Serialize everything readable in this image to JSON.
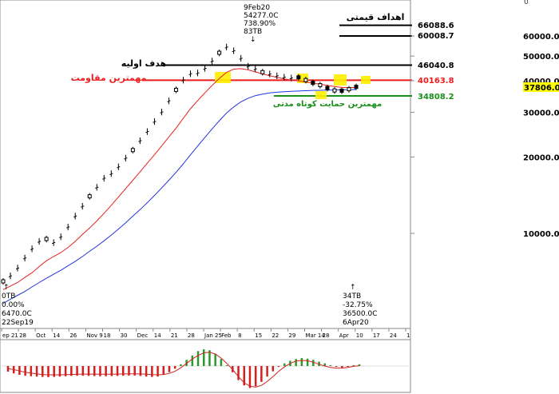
{
  "chart_data": {
    "type": "candlestick",
    "title": "",
    "xlabel": "",
    "ylabel": "",
    "y_scale": "log",
    "ylim": [
      5200,
      86000
    ],
    "x_ticks": [
      "ep 21",
      "28",
      "Oct",
      "14",
      "26",
      "Nov 9",
      "18",
      "30",
      "Dec",
      "14",
      "21",
      "28",
      "Jan 25",
      "Feb",
      "8",
      "15",
      "22",
      "29",
      "Mar 14",
      "28",
      "Apr",
      "10",
      "17",
      "24",
      "1"
    ],
    "y_ticks": [
      {
        "label": "60000.0",
        "value": 60000
      },
      {
        "label": "50000.0",
        "value": 50000
      },
      {
        "label": "40000.0",
        "value": 40000
      },
      {
        "label": "30000.0",
        "value": 30000
      },
      {
        "label": "20000.0",
        "value": 20000
      },
      {
        "label": "10000.0",
        "value": 10000
      }
    ],
    "corner_label": "0",
    "last_price": "37806.0",
    "price_series": [
      6470,
      6800,
      7300,
      8000,
      8700,
      9300,
      9500,
      9200,
      9700,
      10600,
      11700,
      12800,
      14000,
      15200,
      16500,
      17200,
      18300,
      19800,
      21300,
      23200,
      25200,
      27600,
      30100,
      33300,
      36800,
      40200,
      42600,
      42900,
      44700,
      47800,
      51500,
      54277,
      52500,
      49000,
      45600,
      44500,
      43200,
      42500,
      41800,
      41300,
      41000,
      41200,
      40200,
      39200,
      38400,
      37400,
      36600,
      36500,
      37000,
      37806
    ],
    "ma_fast": [
      6000,
      6200,
      6400,
      6700,
      7000,
      7400,
      7800,
      8100,
      8400,
      8800,
      9300,
      9900,
      10500,
      11200,
      12000,
      12900,
      13900,
      15000,
      16200,
      17500,
      18900,
      20400,
      22100,
      24000,
      26000,
      28400,
      31000,
      33400,
      35800,
      38300,
      40800,
      43100,
      44400,
      44600,
      44100,
      43300,
      42500,
      41800,
      41200,
      40600,
      40200,
      39900,
      39500,
      39100,
      38700,
      38300,
      37900,
      37600,
      37500,
      37600
    ],
    "ma_slow": [
      5300,
      5500,
      5700,
      5900,
      6150,
      6400,
      6650,
      6900,
      7150,
      7450,
      7750,
      8100,
      8500,
      8900,
      9350,
      9850,
      10400,
      11000,
      11700,
      12400,
      13200,
      14100,
      15100,
      16200,
      17400,
      18800,
      20400,
      22100,
      23900,
      25800,
      27800,
      29800,
      31500,
      33000,
      34100,
      34900,
      35400,
      35800,
      36000,
      36200,
      36300,
      36400,
      36500,
      36600,
      36650,
      36700,
      36750,
      36800,
      36850,
      36900
    ],
    "macd_histogram": [
      -0.32,
      -0.42,
      -0.5,
      -0.55,
      -0.58,
      -0.6,
      -0.62,
      -0.63,
      -0.62,
      -0.6,
      -0.58,
      -0.56,
      -0.55,
      -0.55,
      -0.56,
      -0.57,
      -0.58,
      -0.58,
      -0.57,
      -0.56,
      -0.55,
      -0.54,
      -0.54,
      -0.56,
      -0.6,
      -0.62,
      -0.6,
      -0.5,
      -0.35,
      -0.15,
      0.1,
      0.35,
      0.6,
      0.85,
      0.95,
      0.9,
      0.7,
      0.4,
      0.05,
      -0.35,
      -0.8,
      -1.1,
      -1.25,
      -1.15,
      -0.9,
      -0.6,
      -0.3,
      -0.05,
      0.15,
      0.3,
      0.4,
      0.45,
      0.42,
      0.35,
      0.25,
      0.15,
      0.05,
      -0.05,
      -0.1,
      -0.05,
      0.05,
      0.1
    ],
    "macd_signal": [
      -0.15,
      -0.2,
      -0.28,
      -0.35,
      -0.4,
      -0.45,
      -0.48,
      -0.5,
      -0.5,
      -0.5,
      -0.49,
      -0.48,
      -0.47,
      -0.46,
      -0.46,
      -0.46,
      -0.47,
      -0.47,
      -0.47,
      -0.46,
      -0.45,
      -0.44,
      -0.44,
      -0.45,
      -0.47,
      -0.49,
      -0.5,
      -0.48,
      -0.42,
      -0.3,
      -0.1,
      0.15,
      0.4,
      0.6,
      0.75,
      0.78,
      0.68,
      0.45,
      0.15,
      -0.2,
      -0.6,
      -0.95,
      -1.15,
      -1.2,
      -1.1,
      -0.88,
      -0.6,
      -0.3,
      -0.05,
      0.15,
      0.28,
      0.32,
      0.3,
      0.22,
      0.1,
      0.0,
      -0.08,
      -0.12,
      -0.12,
      -0.08,
      -0.02,
      0.02
    ],
    "levels": [
      {
        "name": "target-1",
        "value": 66088.6,
        "label": "66088.6",
        "color": "#000000"
      },
      {
        "name": "target-2",
        "value": 60008.7,
        "label": "60008.7",
        "color": "#000000"
      },
      {
        "name": "initial-target",
        "value": 46040.8,
        "label": "46040.8",
        "color": "#000000"
      },
      {
        "name": "key-resistance",
        "value": 40163.8,
        "label": "40163.8",
        "color": "#ee1c1c"
      },
      {
        "name": "key-support",
        "value": 34808.2,
        "label": "34808.2",
        "color": "#1a8f1a"
      }
    ],
    "annotations": {
      "targets_title": "اهداف قیمتی",
      "initial_target": "هدف اولیه",
      "key_resistance": "مهمترین مقاومت",
      "key_support": "مهمترین حمایت کوتاه مدتی",
      "peak": [
        "9Feb20",
        "54277.0C",
        "738.90%",
        "83TB"
      ],
      "start": [
        "0TB",
        "0.00%",
        "6470.0C",
        "22Sep19"
      ],
      "end": [
        "34TB",
        "-32.75%",
        "36500.0C",
        "6Apr20"
      ]
    },
    "colors": {
      "ma_fast": "#e82020",
      "ma_slow": "#2233dd",
      "macd_up": "#2a9a2a",
      "macd_down": "#d02020",
      "highlight": "#ffee00",
      "last_price_box": "#ffff00"
    }
  }
}
